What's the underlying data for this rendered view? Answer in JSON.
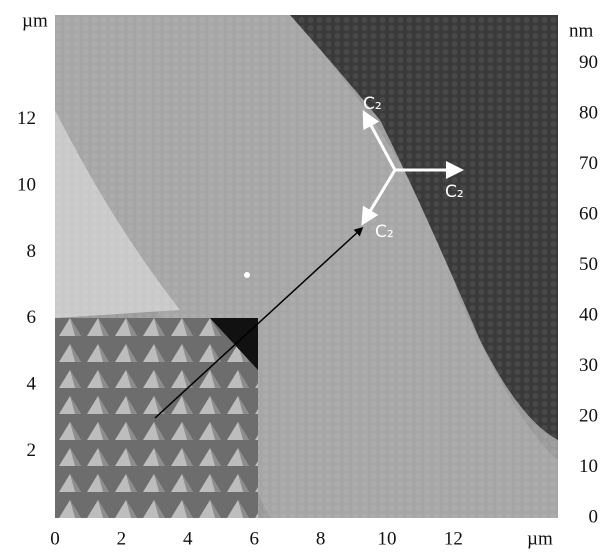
{
  "x_axis": {
    "unit": "µm",
    "ticks": [
      0,
      2,
      4,
      6,
      8,
      10,
      12
    ]
  },
  "y_axis": {
    "unit": "µm",
    "ticks": [
      2,
      4,
      6,
      8,
      10,
      12
    ]
  },
  "height_scale": {
    "unit": "nm",
    "ticks": [
      0,
      10,
      20,
      30,
      40,
      50,
      60,
      70,
      80,
      90
    ]
  },
  "annotations": [
    "C₂",
    "C₂",
    "C₂"
  ]
}
